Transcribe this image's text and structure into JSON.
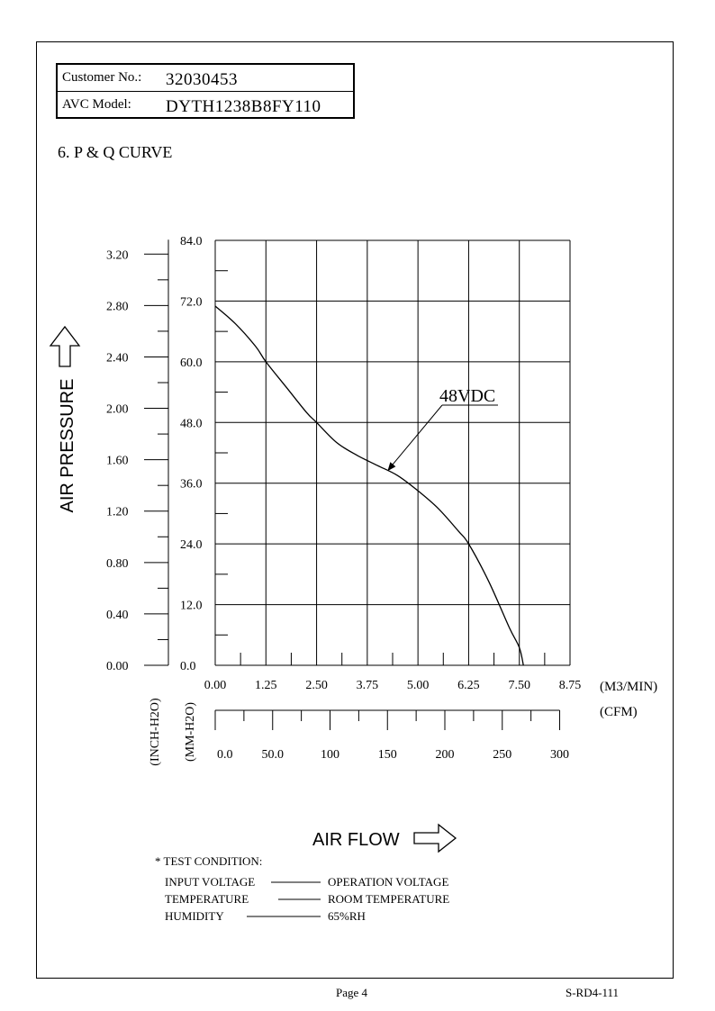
{
  "header": {
    "customer_label": "Customer No.:",
    "customer_value": "32030453",
    "model_label": "AVC Model:",
    "model_value": "DYTH1238B8FY110"
  },
  "section_title": "6. P & Q CURVE",
  "footer": {
    "page": "Page 4",
    "code": "S-RD4-111"
  },
  "test_condition": {
    "title": "* TEST CONDITION:",
    "rows": [
      {
        "label": "INPUT VOLTAGE",
        "value": "OPERATION VOLTAGE"
      },
      {
        "label": "TEMPERATURE",
        "value": "ROOM TEMPERATURE"
      },
      {
        "label": "HUMIDITY",
        "value": "65%RH"
      }
    ]
  },
  "chart_data": {
    "type": "line",
    "title": "",
    "ylabel": "AIR PRESSURE",
    "xlabel": "AIR FLOW",
    "x_unit_primary": "(M3/MIN)",
    "x_unit_secondary": "(CFM)",
    "y_unit_mm": "(MM-H2O)",
    "y_unit_inch": "(INCH-H2O)",
    "xlim": [
      0,
      8.75
    ],
    "ylim_mm": [
      0,
      84
    ],
    "ylim_inch": [
      0,
      3.2
    ],
    "x_ticks_m3": [
      "0.00",
      "1.25",
      "2.50",
      "3.75",
      "5.00",
      "6.25",
      "7.50",
      "8.75"
    ],
    "x_ticks_cfm": [
      "0.0",
      "50.0",
      "100",
      "150",
      "200",
      "250",
      "300"
    ],
    "y_ticks_mm": [
      "0.0",
      "12.0",
      "24.0",
      "36.0",
      "48.0",
      "60.0",
      "72.0",
      "84.0"
    ],
    "y_ticks_inch": [
      "0.00",
      "0.40",
      "0.80",
      "1.20",
      "1.60",
      "2.00",
      "2.40",
      "2.80",
      "3.20"
    ],
    "grid": true,
    "annotation": "48VDC",
    "series": [
      {
        "name": "48VDC",
        "x": [
          0.0,
          0.5,
          1.0,
          1.25,
          1.75,
          2.25,
          2.5,
          3.0,
          3.5,
          4.0,
          4.5,
          5.0,
          5.5,
          6.0,
          6.25,
          6.75,
          7.25,
          7.5,
          7.6
        ],
        "y": [
          71.0,
          67.5,
          63.0,
          60.0,
          55.0,
          50.0,
          48.0,
          44.0,
          41.5,
          39.5,
          37.5,
          34.5,
          31.0,
          26.5,
          24.0,
          16.5,
          7.5,
          3.5,
          0.0
        ]
      }
    ]
  }
}
